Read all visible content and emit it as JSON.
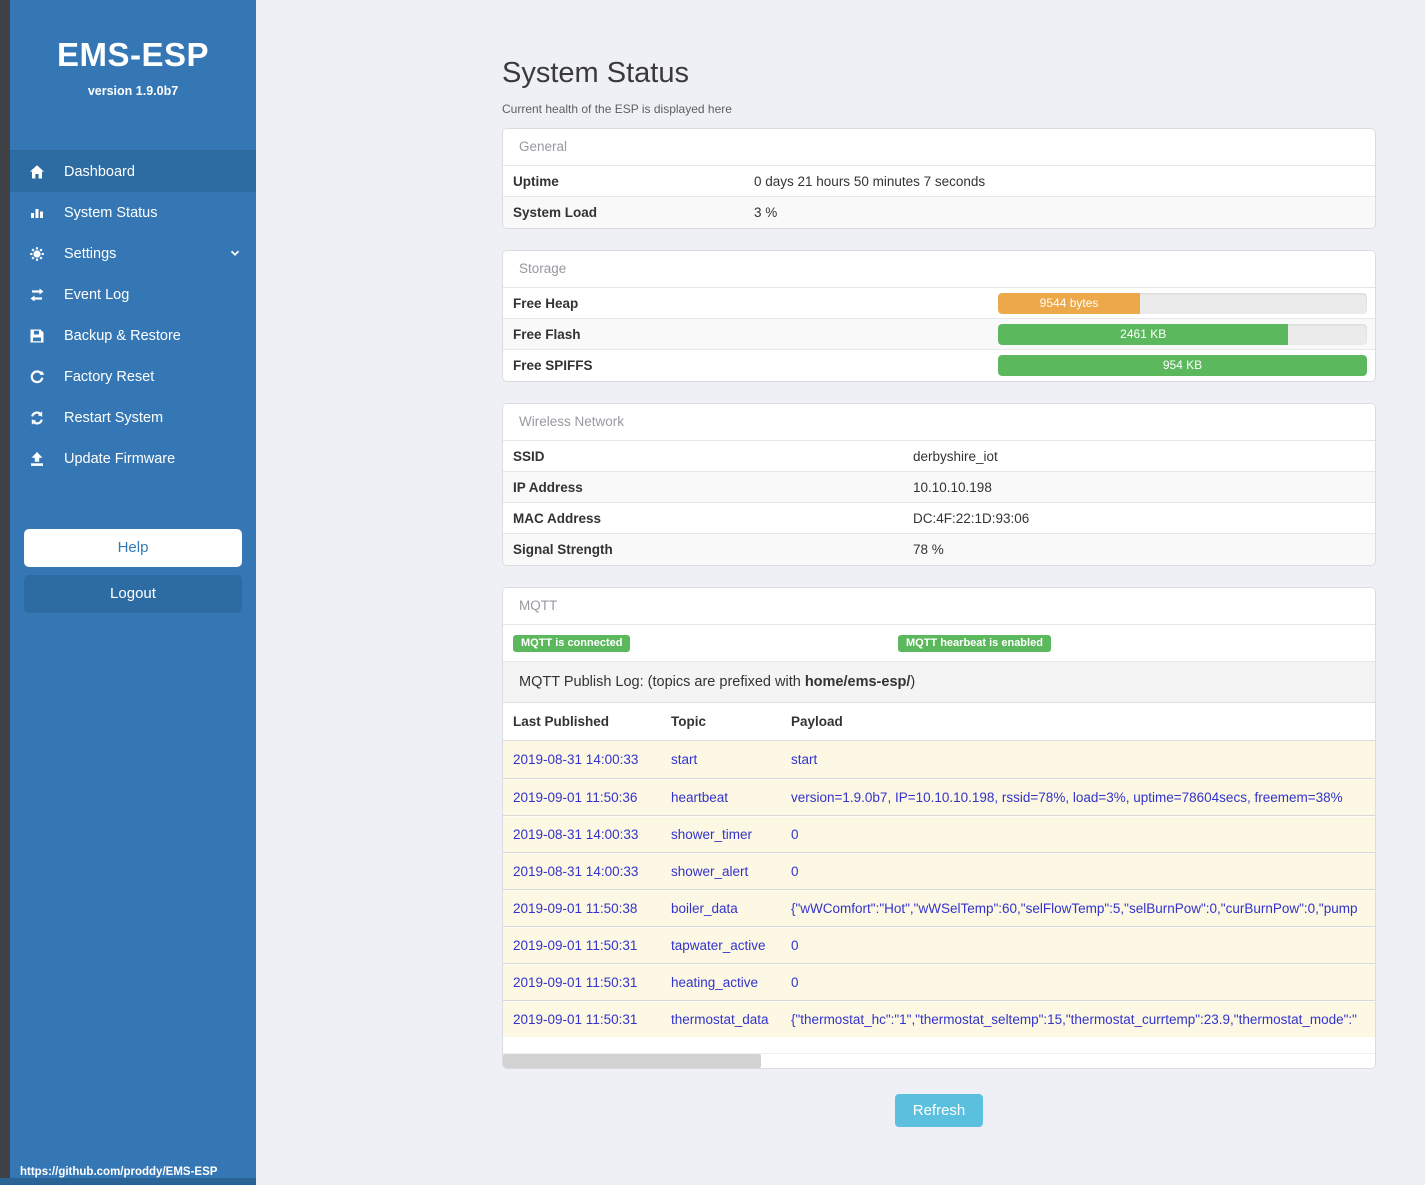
{
  "sidebar": {
    "brand": "EMS-ESP",
    "version": "version 1.9.0b7",
    "menu": [
      {
        "label": "Dashboard",
        "icon": "home-icon",
        "active": true
      },
      {
        "label": "System Status",
        "icon": "system-status-icon",
        "active": false
      },
      {
        "label": "Settings",
        "icon": "gear-icon",
        "active": false,
        "chevron": "chevron-down-icon"
      },
      {
        "label": "Event Log",
        "icon": "exchange-icon",
        "active": false
      },
      {
        "label": "Backup & Restore",
        "icon": "save-icon",
        "active": false
      },
      {
        "label": "Factory Reset",
        "icon": "rotate-ccw-icon",
        "active": false
      },
      {
        "label": "Restart System",
        "icon": "refresh-icon",
        "active": false
      },
      {
        "label": "Update Firmware",
        "icon": "upload-icon",
        "active": false
      }
    ],
    "help_label": "Help",
    "logout_label": "Logout",
    "footer_url": "https://github.com/proddy/EMS-ESP"
  },
  "header": {
    "title": "System Status",
    "subtitle": "Current health of the ESP is displayed here"
  },
  "panels": {
    "general": {
      "title": "General",
      "rows": [
        {
          "label": "Uptime",
          "value": "0 days 21 hours 50 minutes 7 seconds"
        },
        {
          "label": "System Load",
          "value": "3 %"
        }
      ]
    },
    "storage": {
      "title": "Storage",
      "rows": [
        {
          "label": "Free Heap",
          "bar_label": "9544 bytes",
          "percent": 38.5,
          "color": "#eca849"
        },
        {
          "label": "Free Flash",
          "bar_label": "2461 KB",
          "percent": 78.7,
          "color": "#5cb85c"
        },
        {
          "label": "Free SPIFFS",
          "bar_label": "954 KB",
          "percent": 100,
          "color": "#5cb85c"
        }
      ]
    },
    "wireless": {
      "title": "Wireless Network",
      "rows": [
        {
          "label": "SSID",
          "value": "derbyshire_iot"
        },
        {
          "label": "IP Address",
          "value": "10.10.10.198"
        },
        {
          "label": "MAC Address",
          "value": "DC:4F:22:1D:93:06"
        },
        {
          "label": "Signal Strength",
          "value": "78 %"
        }
      ]
    },
    "mqtt": {
      "title": "MQTT",
      "badges": [
        "MQTT is connected",
        "MQTT hearbeat is enabled"
      ],
      "publish_log": {
        "prefix": "MQTT Publish Log: (topics are prefixed with ",
        "bold": "home/ems-esp/",
        "suffix": ")"
      },
      "table": {
        "headers": [
          "Last Published",
          "Topic",
          "Payload"
        ],
        "rows": [
          [
            "2019-08-31 14:00:33",
            "start",
            "start"
          ],
          [
            "2019-09-01 11:50:36",
            "heartbeat",
            "version=1.9.0b7, IP=10.10.10.198, rssid=78%, load=3%, uptime=78604secs, freemem=38%"
          ],
          [
            "2019-08-31 14:00:33",
            "shower_timer",
            "0"
          ],
          [
            "2019-08-31 14:00:33",
            "shower_alert",
            "0"
          ],
          [
            "2019-09-01 11:50:38",
            "boiler_data",
            "{\"wWComfort\":\"Hot\",\"wWSelTemp\":60,\"selFlowTemp\":5,\"selBurnPow\":0,\"curBurnPow\":0,\"pump"
          ],
          [
            "2019-09-01 11:50:31",
            "tapwater_active",
            "0"
          ],
          [
            "2019-09-01 11:50:31",
            "heating_active",
            "0"
          ],
          [
            "2019-09-01 11:50:31",
            "thermostat_data",
            "{\"thermostat_hc\":\"1\",\"thermostat_seltemp\":15,\"thermostat_currtemp\":23.9,\"thermostat_mode\":\""
          ]
        ]
      }
    }
  },
  "refresh_label": "Refresh",
  "colors": {
    "sidebar_blue": "#3577b4",
    "active_blue": "#2d6ba3",
    "success_green": "#5cb85c",
    "warning_orange": "#eca849",
    "info_blue": "#5bc0de",
    "log_row_bg": "#fcf8e3",
    "log_text_blue": "#3333cc"
  }
}
